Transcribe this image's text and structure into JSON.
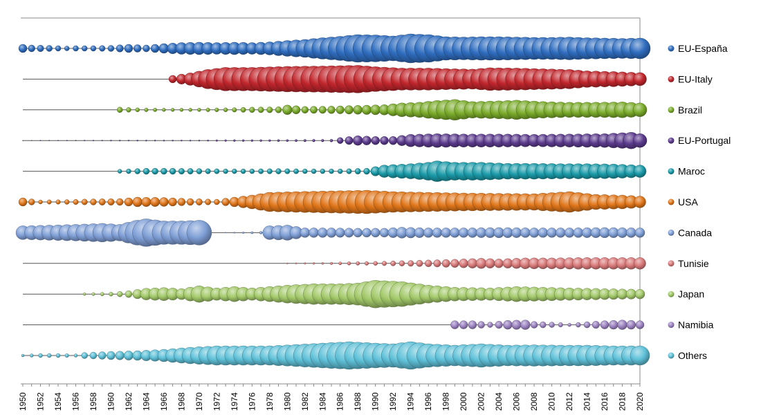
{
  "chart_data": {
    "type": "bubble-timeline",
    "title": "",
    "xlabel": "",
    "ylabel": "",
    "xlim": [
      1950,
      2020
    ],
    "x_tick_labels": [
      "1950",
      "1952",
      "1954",
      "1956",
      "1958",
      "1960",
      "1962",
      "1964",
      "1966",
      "1968",
      "1970",
      "1972",
      "1974",
      "1976",
      "1978",
      "1980",
      "1982",
      "1984",
      "1986",
      "1988",
      "1990",
      "1992",
      "1994",
      "1996",
      "1998",
      "2000",
      "2002",
      "2004",
      "2006",
      "2008",
      "2010",
      "2012",
      "2014",
      "2016",
      "2018",
      "2020"
    ],
    "legend_position": "right",
    "grid": false,
    "series": [
      {
        "name": "EU-España",
        "color": "#2f6dbf",
        "start_year": 1950,
        "end_year": 2020,
        "key_values": [
          [
            1950,
            12
          ],
          [
            1951,
            10
          ],
          [
            1953,
            9
          ],
          [
            1955,
            7
          ],
          [
            1956,
            8
          ],
          [
            1958,
            8
          ],
          [
            1960,
            9
          ],
          [
            1962,
            12
          ],
          [
            1964,
            10
          ],
          [
            1966,
            14
          ],
          [
            1968,
            17
          ],
          [
            1970,
            18
          ],
          [
            1972,
            17
          ],
          [
            1974,
            18
          ],
          [
            1976,
            17
          ],
          [
            1978,
            19
          ],
          [
            1980,
            23
          ],
          [
            1982,
            26
          ],
          [
            1984,
            31
          ],
          [
            1986,
            35
          ],
          [
            1988,
            40
          ],
          [
            1990,
            39
          ],
          [
            1992,
            36
          ],
          [
            1994,
            42
          ],
          [
            1996,
            40
          ],
          [
            1998,
            34
          ],
          [
            2000,
            33
          ],
          [
            2002,
            34
          ],
          [
            2004,
            34
          ],
          [
            2006,
            33
          ],
          [
            2008,
            32
          ],
          [
            2010,
            32
          ],
          [
            2012,
            33
          ],
          [
            2014,
            31
          ],
          [
            2016,
            30
          ],
          [
            2018,
            29
          ],
          [
            2020,
            30
          ]
        ]
      },
      {
        "name": "EU-Italy",
        "color": "#c0262c",
        "start_year": 1967,
        "end_year": 2020,
        "key_values": [
          [
            1967,
            11
          ],
          [
            1969,
            18
          ],
          [
            1971,
            28
          ],
          [
            1973,
            34
          ],
          [
            1976,
            34
          ],
          [
            1980,
            37
          ],
          [
            1984,
            38
          ],
          [
            1988,
            40
          ],
          [
            1990,
            36
          ],
          [
            1993,
            32
          ],
          [
            1996,
            32
          ],
          [
            1999,
            30
          ],
          [
            2001,
            29
          ],
          [
            2003,
            33
          ],
          [
            2006,
            32
          ],
          [
            2009,
            30
          ],
          [
            2012,
            28
          ],
          [
            2014,
            24
          ],
          [
            2017,
            22
          ],
          [
            2020,
            19
          ]
        ]
      },
      {
        "name": "Brazil",
        "color": "#7aab2a",
        "start_year": 1961,
        "end_year": 2020,
        "key_values": [
          [
            1961,
            8
          ],
          [
            1963,
            6
          ],
          [
            1966,
            5
          ],
          [
            1969,
            5
          ],
          [
            1973,
            6
          ],
          [
            1976,
            8
          ],
          [
            1979,
            9
          ],
          [
            1980,
            14
          ],
          [
            1982,
            10
          ],
          [
            1985,
            11
          ],
          [
            1988,
            13
          ],
          [
            1991,
            15
          ],
          [
            1993,
            20
          ],
          [
            1995,
            22
          ],
          [
            1997,
            27
          ],
          [
            1999,
            30
          ],
          [
            2001,
            24
          ],
          [
            2004,
            26
          ],
          [
            2006,
            28
          ],
          [
            2009,
            24
          ],
          [
            2012,
            22
          ],
          [
            2015,
            22
          ],
          [
            2018,
            23
          ],
          [
            2020,
            20
          ]
        ]
      },
      {
        "name": "EU-Portugal",
        "color": "#5b3a8c",
        "start_year": 1950,
        "end_year": 2020,
        "key_values": [
          [
            1950,
            1
          ],
          [
            1964,
            2
          ],
          [
            1970,
            2
          ],
          [
            1974,
            3
          ],
          [
            1978,
            3
          ],
          [
            1985,
            4
          ],
          [
            1986,
            9
          ],
          [
            1988,
            14
          ],
          [
            1990,
            12
          ],
          [
            1992,
            12
          ],
          [
            1994,
            18
          ],
          [
            1997,
            20
          ],
          [
            2000,
            19
          ],
          [
            2004,
            19
          ],
          [
            2008,
            18
          ],
          [
            2012,
            19
          ],
          [
            2016,
            20
          ],
          [
            2019,
            24
          ],
          [
            2020,
            20
          ]
        ]
      },
      {
        "name": "Maroc",
        "color": "#1a9aa8",
        "start_year": 1961,
        "end_year": 2020,
        "key_values": [
          [
            1961,
            6
          ],
          [
            1964,
            9
          ],
          [
            1967,
            9
          ],
          [
            1970,
            8
          ],
          [
            1973,
            7
          ],
          [
            1976,
            7
          ],
          [
            1979,
            8
          ],
          [
            1982,
            7
          ],
          [
            1986,
            7
          ],
          [
            1989,
            9
          ],
          [
            1991,
            18
          ],
          [
            1994,
            22
          ],
          [
            1996,
            26
          ],
          [
            1997,
            30
          ],
          [
            1999,
            26
          ],
          [
            2002,
            26
          ],
          [
            2005,
            23
          ],
          [
            2008,
            23
          ],
          [
            2011,
            22
          ],
          [
            2014,
            22
          ],
          [
            2017,
            21
          ],
          [
            2020,
            18
          ]
        ]
      },
      {
        "name": "USA",
        "color": "#e0761a",
        "start_year": 1950,
        "end_year": 2020,
        "key_values": [
          [
            1950,
            12
          ],
          [
            1952,
            6
          ],
          [
            1955,
            7
          ],
          [
            1958,
            9
          ],
          [
            1961,
            10
          ],
          [
            1963,
            14
          ],
          [
            1966,
            13
          ],
          [
            1969,
            10
          ],
          [
            1972,
            8
          ],
          [
            1974,
            14
          ],
          [
            1976,
            20
          ],
          [
            1978,
            28
          ],
          [
            1981,
            30
          ],
          [
            1985,
            32
          ],
          [
            1989,
            34
          ],
          [
            1992,
            30
          ],
          [
            1996,
            28
          ],
          [
            2000,
            26
          ],
          [
            2004,
            25
          ],
          [
            2008,
            24
          ],
          [
            2012,
            30
          ],
          [
            2015,
            22
          ],
          [
            2018,
            20
          ],
          [
            2020,
            17
          ]
        ]
      },
      {
        "name": "Canada",
        "color": "#7f9fd6",
        "start_year": 1950,
        "end_year": 2020,
        "key_values": [
          [
            1950,
            20
          ],
          [
            1953,
            22
          ],
          [
            1956,
            24
          ],
          [
            1959,
            27
          ],
          [
            1961,
            24
          ],
          [
            1963,
            36
          ],
          [
            1964,
            40
          ],
          [
            1966,
            34
          ],
          [
            1968,
            34
          ],
          [
            1970,
            36
          ],
          [
            1971,
            0
          ],
          [
            1977,
            4
          ],
          [
            1978,
            20
          ],
          [
            1980,
            22
          ],
          [
            1982,
            14
          ],
          [
            1985,
            14
          ],
          [
            1988,
            13
          ],
          [
            1991,
            13
          ],
          [
            1993,
            16
          ],
          [
            1996,
            14
          ],
          [
            2000,
            14
          ],
          [
            2004,
            15
          ],
          [
            2008,
            14
          ],
          [
            2012,
            14
          ],
          [
            2016,
            15
          ],
          [
            2020,
            14
          ]
        ]
      },
      {
        "name": "Tunisie",
        "color": "#d97a7a",
        "start_year": 1980,
        "end_year": 2020,
        "key_values": [
          [
            1980,
            2
          ],
          [
            1984,
            3
          ],
          [
            1987,
            5
          ],
          [
            1990,
            6
          ],
          [
            1993,
            8
          ],
          [
            1996,
            10
          ],
          [
            1999,
            12
          ],
          [
            2002,
            15
          ],
          [
            2004,
            13
          ],
          [
            2007,
            16
          ],
          [
            2010,
            16
          ],
          [
            2013,
            17
          ],
          [
            2016,
            17
          ],
          [
            2020,
            17
          ]
        ]
      },
      {
        "name": "Japan",
        "color": "#a3c96a",
        "start_year": 1957,
        "end_year": 2020,
        "key_values": [
          [
            1957,
            4
          ],
          [
            1960,
            6
          ],
          [
            1962,
            10
          ],
          [
            1964,
            17
          ],
          [
            1966,
            19
          ],
          [
            1968,
            16
          ],
          [
            1970,
            24
          ],
          [
            1972,
            18
          ],
          [
            1974,
            22
          ],
          [
            1976,
            18
          ],
          [
            1978,
            22
          ],
          [
            1980,
            26
          ],
          [
            1983,
            30
          ],
          [
            1986,
            30
          ],
          [
            1988,
            32
          ],
          [
            1990,
            40
          ],
          [
            1993,
            36
          ],
          [
            1996,
            26
          ],
          [
            1999,
            20
          ],
          [
            2003,
            18
          ],
          [
            2006,
            22
          ],
          [
            2009,
            20
          ],
          [
            2012,
            18
          ],
          [
            2016,
            16
          ],
          [
            2020,
            14
          ]
        ]
      },
      {
        "name": "Namibia",
        "color": "#9d84c2",
        "start_year": 1999,
        "end_year": 2020,
        "key_values": [
          [
            1999,
            12
          ],
          [
            2001,
            12
          ],
          [
            2003,
            8
          ],
          [
            2005,
            13
          ],
          [
            2007,
            14
          ],
          [
            2008,
            10
          ],
          [
            2010,
            8
          ],
          [
            2012,
            5
          ],
          [
            2014,
            9
          ],
          [
            2016,
            12
          ],
          [
            2018,
            14
          ],
          [
            2020,
            12
          ]
        ]
      },
      {
        "name": "Others",
        "color": "#5fc1d8",
        "start_year": 1950,
        "end_year": 2020,
        "key_values": [
          [
            1950,
            4
          ],
          [
            1952,
            6
          ],
          [
            1954,
            6
          ],
          [
            1956,
            5
          ],
          [
            1957,
            9
          ],
          [
            1960,
            12
          ],
          [
            1963,
            14
          ],
          [
            1966,
            18
          ],
          [
            1969,
            24
          ],
          [
            1972,
            28
          ],
          [
            1975,
            28
          ],
          [
            1978,
            28
          ],
          [
            1981,
            32
          ],
          [
            1984,
            36
          ],
          [
            1987,
            40
          ],
          [
            1990,
            36
          ],
          [
            1992,
            34
          ],
          [
            1994,
            40
          ],
          [
            1996,
            34
          ],
          [
            1999,
            30
          ],
          [
            2002,
            34
          ],
          [
            2005,
            30
          ],
          [
            2008,
            31
          ],
          [
            2011,
            30
          ],
          [
            2014,
            30
          ],
          [
            2017,
            28
          ],
          [
            2020,
            28
          ]
        ]
      }
    ]
  }
}
